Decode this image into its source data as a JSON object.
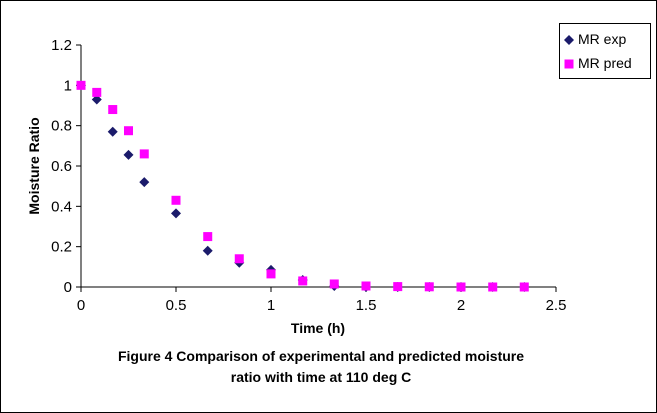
{
  "chart_data": {
    "type": "scatter",
    "xlabel": "Time (h)",
    "ylabel": "Moisture Ratio",
    "xlim": [
      0,
      2.5
    ],
    "ylim": [
      0,
      1.2
    ],
    "xticks": [
      "0",
      "0.5",
      "1",
      "1.5",
      "2",
      "2.5"
    ],
    "yticks": [
      "0",
      "0.2",
      "0.4",
      "0.6",
      "0.8",
      "1",
      "1.2"
    ],
    "grid": false,
    "legend_position": "top-right",
    "series": [
      {
        "name": "MR exp",
        "marker": "diamond",
        "color": "#1b1b6b",
        "x": [
          0,
          0.083,
          0.167,
          0.25,
          0.333,
          0.5,
          0.667,
          0.833,
          1.0,
          1.167,
          1.333,
          1.5,
          1.667,
          1.833,
          2.0,
          2.167,
          2.333
        ],
        "y": [
          1.0,
          0.93,
          0.77,
          0.655,
          0.52,
          0.365,
          0.18,
          0.12,
          0.085,
          0.035,
          0.005,
          0.0,
          0.0,
          0.0,
          0.0,
          0.0,
          0.0
        ]
      },
      {
        "name": "MR pred",
        "marker": "square",
        "color": "#ff00ff",
        "x": [
          0,
          0.083,
          0.167,
          0.25,
          0.333,
          0.5,
          0.667,
          0.833,
          1.0,
          1.167,
          1.333,
          1.5,
          1.667,
          1.833,
          2.0,
          2.167,
          2.333
        ],
        "y": [
          1.0,
          0.965,
          0.88,
          0.775,
          0.66,
          0.43,
          0.25,
          0.14,
          0.065,
          0.03,
          0.015,
          0.005,
          0.002,
          0.001,
          0.0,
          0.0,
          0.0
        ]
      }
    ]
  },
  "caption": {
    "line1": "Figure 4 Comparison of experimental and predicted moisture",
    "line2": "ratio with time at 110 deg C"
  }
}
